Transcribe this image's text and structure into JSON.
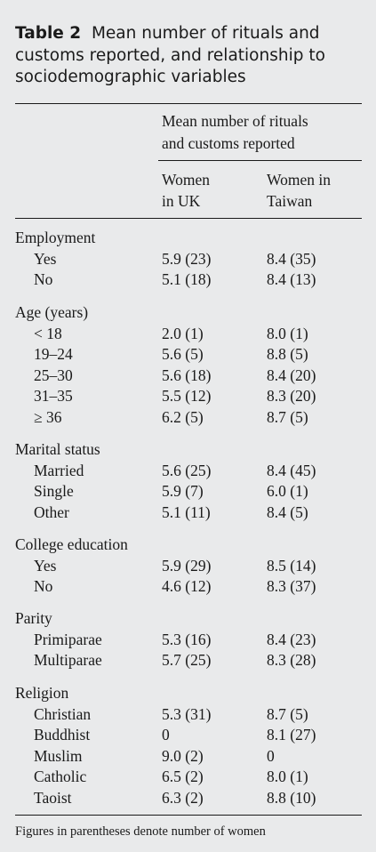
{
  "caption": {
    "label": "Table 2",
    "text": "Mean number of rituals and customs reported, and relationship to sociodemographic variables"
  },
  "header": {
    "spanner_line1": "Mean number of rituals",
    "spanner_line2": "and customs reported",
    "col_uk_line1": "Women",
    "col_uk_line2": "in UK",
    "col_tw_line1": "Women in",
    "col_tw_line2": "Taiwan"
  },
  "groups": [
    {
      "title": "Employment",
      "rows": [
        {
          "label": "Yes",
          "uk": "5.9 (23)",
          "tw": "8.4 (35)"
        },
        {
          "label": "No",
          "uk": "5.1 (18)",
          "tw": "8.4 (13)"
        }
      ]
    },
    {
      "title": "Age (years)",
      "rows": [
        {
          "label": "< 18",
          "uk": "2.0 (1)",
          "tw": "8.0 (1)"
        },
        {
          "label": "19–24",
          "uk": "5.6 (5)",
          "tw": "8.8 (5)"
        },
        {
          "label": "25–30",
          "uk": "5.6 (18)",
          "tw": "8.4 (20)"
        },
        {
          "label": "31–35",
          "uk": "5.5 (12)",
          "tw": "8.3 (20)"
        },
        {
          "label": "≥ 36",
          "uk": "6.2 (5)",
          "tw": "8.7 (5)"
        }
      ]
    },
    {
      "title": "Marital status",
      "rows": [
        {
          "label": "Married",
          "uk": "5.6 (25)",
          "tw": "8.4 (45)"
        },
        {
          "label": "Single",
          "uk": "5.9 (7)",
          "tw": "6.0 (1)"
        },
        {
          "label": "Other",
          "uk": "5.1 (11)",
          "tw": "8.4 (5)"
        }
      ]
    },
    {
      "title": "College education",
      "rows": [
        {
          "label": "Yes",
          "uk": "5.9 (29)",
          "tw": "8.5 (14)"
        },
        {
          "label": "No",
          "uk": "4.6 (12)",
          "tw": "8.3 (37)"
        }
      ]
    },
    {
      "title": "Parity",
      "rows": [
        {
          "label": "Primiparae",
          "uk": "5.3 (16)",
          "tw": "8.4 (23)"
        },
        {
          "label": "Multiparae",
          "uk": "5.7 (25)",
          "tw": "8.3 (28)"
        }
      ]
    },
    {
      "title": "Religion",
      "rows": [
        {
          "label": "Christian",
          "uk": "5.3 (31)",
          "tw": "8.7 (5)"
        },
        {
          "label": "Buddhist",
          "uk": "0",
          "tw": "8.1 (27)"
        },
        {
          "label": "Muslim",
          "uk": "9.0 (2)",
          "tw": "0"
        },
        {
          "label": "Catholic",
          "uk": "6.5 (2)",
          "tw": "8.0 (1)"
        },
        {
          "label": "Taoist",
          "uk": "6.3 (2)",
          "tw": "8.8 (10)"
        }
      ]
    }
  ],
  "footnote": "Figures in parentheses denote number of women"
}
